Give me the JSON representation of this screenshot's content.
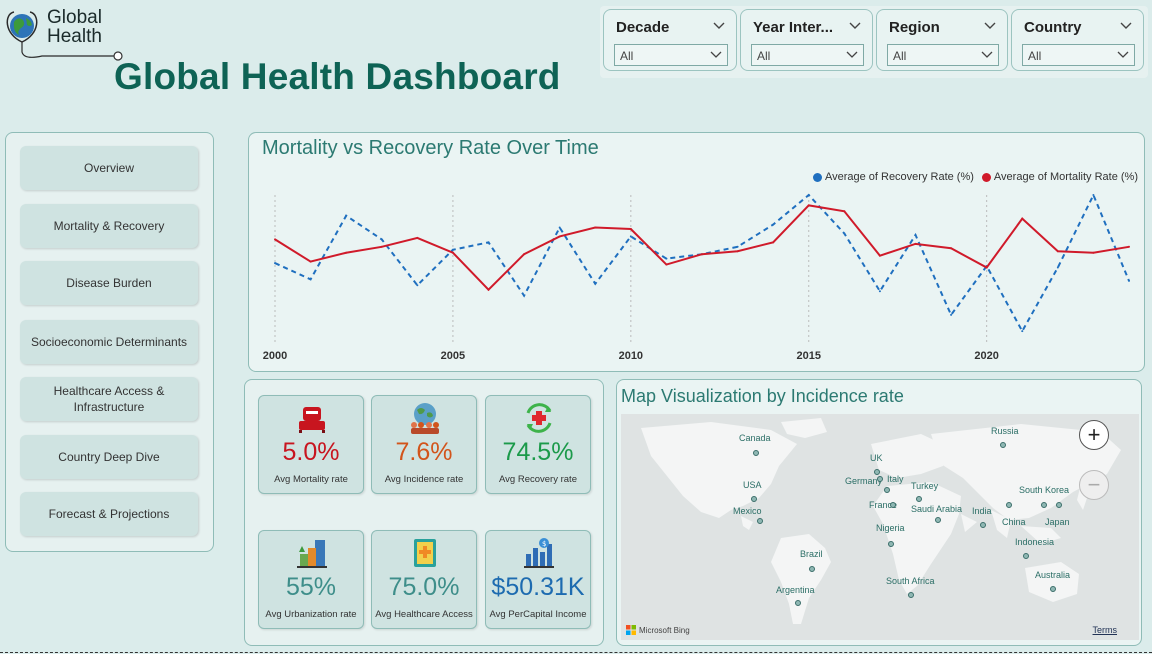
{
  "logo": {
    "line1": "Global",
    "line2": "Health"
  },
  "title": "Global Health Dashboard",
  "filters": [
    {
      "title": "Decade",
      "value": "All"
    },
    {
      "title": "Year Inter...",
      "value": "All"
    },
    {
      "title": "Region",
      "value": "All"
    },
    {
      "title": "Country",
      "value": "All"
    }
  ],
  "nav": [
    {
      "label": "Overview"
    },
    {
      "label": "Mortality & Recovery"
    },
    {
      "label": "Disease Burden"
    },
    {
      "label": "Socioeconomic Determinants"
    },
    {
      "label": "Healthcare Access & Infrastructure"
    },
    {
      "label": "Country Deep Dive"
    },
    {
      "label": "Forecast & Projections"
    }
  ],
  "chart_data": {
    "type": "line",
    "title": "Mortality vs Recovery Rate Over Time",
    "x": [
      2000,
      2001,
      2002,
      2003,
      2004,
      2005,
      2006,
      2007,
      2008,
      2009,
      2010,
      2011,
      2012,
      2013,
      2014,
      2015,
      2016,
      2017,
      2018,
      2019,
      2020,
      2021,
      2022,
      2023,
      2024
    ],
    "x_ticks": [
      "2000",
      "2005",
      "2010",
      "2015",
      "2020"
    ],
    "series": [
      {
        "name": "Average of Recovery Rate (%)",
        "color": "#1f6fbf",
        "style": "dashed",
        "values": [
          54,
          43,
          86,
          70,
          39,
          63,
          68,
          32,
          78,
          40,
          72,
          57,
          60,
          65,
          80,
          100,
          74,
          35,
          73,
          19,
          52,
          8,
          51,
          100,
          42
        ]
      },
      {
        "name": "Average of Mortality Rate (%)",
        "color": "#d01a2a",
        "style": "solid",
        "values": [
          70,
          55,
          61,
          65,
          71,
          61,
          36,
          60,
          72,
          78,
          77,
          53,
          60,
          62,
          68,
          93,
          89,
          59,
          67,
          64,
          51,
          84,
          62,
          61,
          65
        ]
      }
    ],
    "y_hidden": true,
    "grid": "vertical"
  },
  "kpis": [
    {
      "value": "5.0%",
      "label": "Avg Mortality rate",
      "color": "#c8151f",
      "icon": "bed-icon"
    },
    {
      "value": "7.6%",
      "label": "Avg Incidence rate",
      "color": "#d2541b",
      "icon": "globe-people-icon"
    },
    {
      "value": "74.5%",
      "label": "Avg Recovery rate",
      "color": "#1b9a4a",
      "icon": "recovery-cross-icon"
    },
    {
      "value": "55%",
      "label": "Avg Urbanization rate",
      "color": "#3e8e8a",
      "icon": "city-icon"
    },
    {
      "value": "75.0%",
      "label": "Avg Healthcare Access",
      "color": "#3e8e8a",
      "icon": "medical-book-icon"
    },
    {
      "value": "$50.31K",
      "label": "Avg PerCapital Income",
      "color": "#1d6bb0",
      "icon": "income-chart-icon"
    }
  ],
  "map": {
    "title": "Map Visualization by Incidence rate",
    "labels": [
      "Canada",
      "Russia",
      "UK",
      "Germany",
      "Italy",
      "USA",
      "Turkey",
      "France",
      "Saudi Arabia",
      "India",
      "South Korea",
      "Mexico",
      "China",
      "Japan",
      "Nigeria",
      "Indonesia",
      "Brazil",
      "South Africa",
      "Australia",
      "Argentina"
    ],
    "attribution": "Microsoft Bing",
    "terms": "Terms",
    "zoom_in": "+",
    "zoom_out": "−"
  }
}
